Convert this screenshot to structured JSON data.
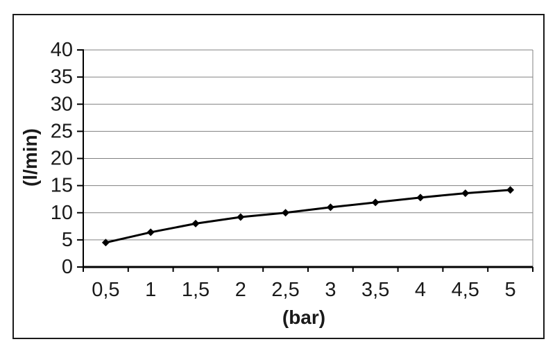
{
  "figure": {
    "background": "#ffffff",
    "frame_border_color": "#1a1a1a"
  },
  "chart_data": {
    "type": "line",
    "title": "",
    "categories": [
      "0,5",
      "1",
      "1,5",
      "2",
      "2,5",
      "3",
      "3,5",
      "4",
      "4,5",
      "5"
    ],
    "x_numeric": [
      0.5,
      1,
      1.5,
      2,
      2.5,
      3,
      3.5,
      4,
      4.5,
      5
    ],
    "values": [
      4.5,
      6.4,
      8.0,
      9.2,
      10.0,
      11.0,
      11.9,
      12.8,
      13.6,
      14.2
    ],
    "xlabel": "(bar)",
    "ylabel": "(l/min)",
    "ylim": [
      0,
      40
    ],
    "ytick_step": 5,
    "ytick_labels": [
      "0",
      "5",
      "10",
      "15",
      "20",
      "25",
      "30",
      "35",
      "40"
    ],
    "grid": true,
    "legend": "none",
    "marker": "diamond",
    "line_color": "#000000",
    "marker_color": "#000000",
    "grid_color": "#808080",
    "axis_color": "#000000",
    "text_color": "#1a1a1a"
  }
}
